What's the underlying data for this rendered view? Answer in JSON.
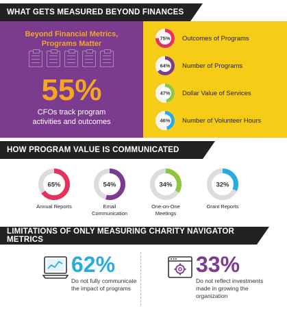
{
  "banners": {
    "section1": "WHAT GETS MEASURED BEYOND FINANCES",
    "section2": "HOW PROGRAM VALUE  IS COMMUNICATED",
    "section3": "LIMITATIONS OF ONLY MEASURING CHARITY NAVIGATOR METRICS"
  },
  "left_panel": {
    "title_line1": "Beyond Financial Metrics,",
    "title_line2": "Programs Matter",
    "big_percent": "55%",
    "desc_line1": "CFOs track program",
    "desc_line2": "activities and outcomes",
    "icon": "clipboard-checklist-icon"
  },
  "chart_data": [
    {
      "type": "pie",
      "variant": "donut",
      "categories": [
        "Outcomes of Programs",
        "Number of Programs",
        "Dollar Value of Services",
        "Number of Volunteer Hours"
      ],
      "values": [
        75,
        64,
        47,
        46
      ],
      "labels": [
        "75%",
        "64%",
        "47%",
        "46%"
      ],
      "colors": [
        "#e8305c",
        "#7b3b8f",
        "#8dc63f",
        "#29abe2"
      ]
    },
    {
      "type": "pie",
      "variant": "donut",
      "categories": [
        "Annual Reports",
        "Email Communication",
        "One-on-One Meetings",
        "Grant Reports"
      ],
      "categories_display": [
        [
          "Annual Reports"
        ],
        [
          "Email",
          "Communication"
        ],
        [
          "One-on-One",
          "Meetings"
        ],
        [
          "Grant Reports"
        ]
      ],
      "values": [
        65,
        54,
        34,
        32
      ],
      "labels": [
        "65%",
        "54%",
        "34%",
        "32%"
      ],
      "colors": [
        "#e8305c",
        "#7b3b8f",
        "#8dc63f",
        "#29abe2"
      ]
    }
  ],
  "limitations": [
    {
      "percent": "62%",
      "line1": "Do not fully communicate",
      "line2": "the impact of programs",
      "line3": "",
      "color": "#29abe2",
      "icon": "laptop-chart-icon"
    },
    {
      "percent": "33%",
      "line1": "Do not reflect investments",
      "line2": "made in growing the",
      "line3": "organization",
      "color": "#7b3b8f",
      "icon": "browser-gear-icon"
    }
  ],
  "colors": {
    "purple": "#7b3b8f",
    "yellow": "#f7cc17",
    "orange": "#f5a623",
    "dark": "#222222",
    "track": "#dcdcdc"
  }
}
